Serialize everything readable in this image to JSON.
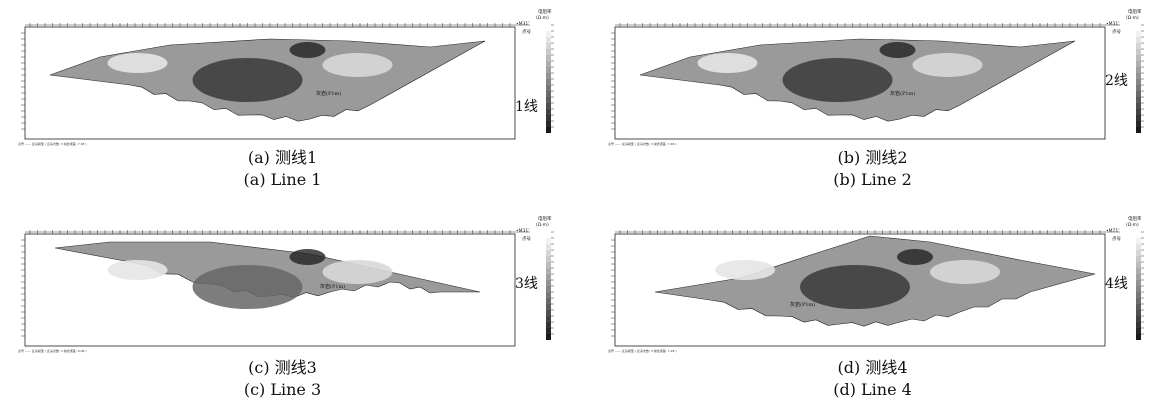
{
  "panels": [
    {
      "key": "a",
      "line_label": "1线",
      "caption_cn": "(a) 测线1",
      "caption_en": "(a) Line 1",
      "start_label": "•M31'",
      "end_label": "点号",
      "cb_title": "电阻率",
      "cb_unit": "(Ω·m)",
      "note": "灰岩(P1m)",
      "footer": "点号  —— 反演模型 ( 反演次数: 3  拟合误差: 7.38 )",
      "shape": "sym",
      "dark": "#3a3a3a"
    },
    {
      "key": "b",
      "line_label": "2线",
      "caption_cn": "(b) 测线2",
      "caption_en": "(b) Line 2",
      "start_label": "•M31'",
      "end_label": "点号",
      "cb_title": "电阻率",
      "cb_unit": "(Ω·m)",
      "note": "灰岩(P1m)",
      "footer": "点号  —— 反演模型 ( 反演次数: 3  拟合误差: 7.48 )",
      "shape": "sym",
      "dark": "#3a3a3a"
    },
    {
      "key": "c",
      "line_label": "3线",
      "caption_cn": "(c) 测线3",
      "caption_en": "(c) Line 3",
      "start_label": "•M31'",
      "end_label": "点号",
      "cb_title": "电阻率",
      "cb_unit": "(Ω·m)",
      "note": "灰岩(P1m)",
      "footer": "点号  —— 反演模型 ( 反演次数: 3  拟合误差: 6.08 )",
      "shape": "slope",
      "dark": "#666"
    },
    {
      "key": "d",
      "line_label": "4线",
      "caption_cn": "(d) 测线4",
      "caption_en": "(d) Line 4",
      "start_label": "•M71'",
      "end_label": "点号",
      "cb_title": "电阻率",
      "cb_unit": "(Ω·m)",
      "note": "灰岩(P1m)",
      "footer": "点号  —— 反演模型 ( 反演次数: 3  拟合误差: 7.28 )",
      "shape": "peak",
      "dark": "#3a3a3a"
    }
  ]
}
